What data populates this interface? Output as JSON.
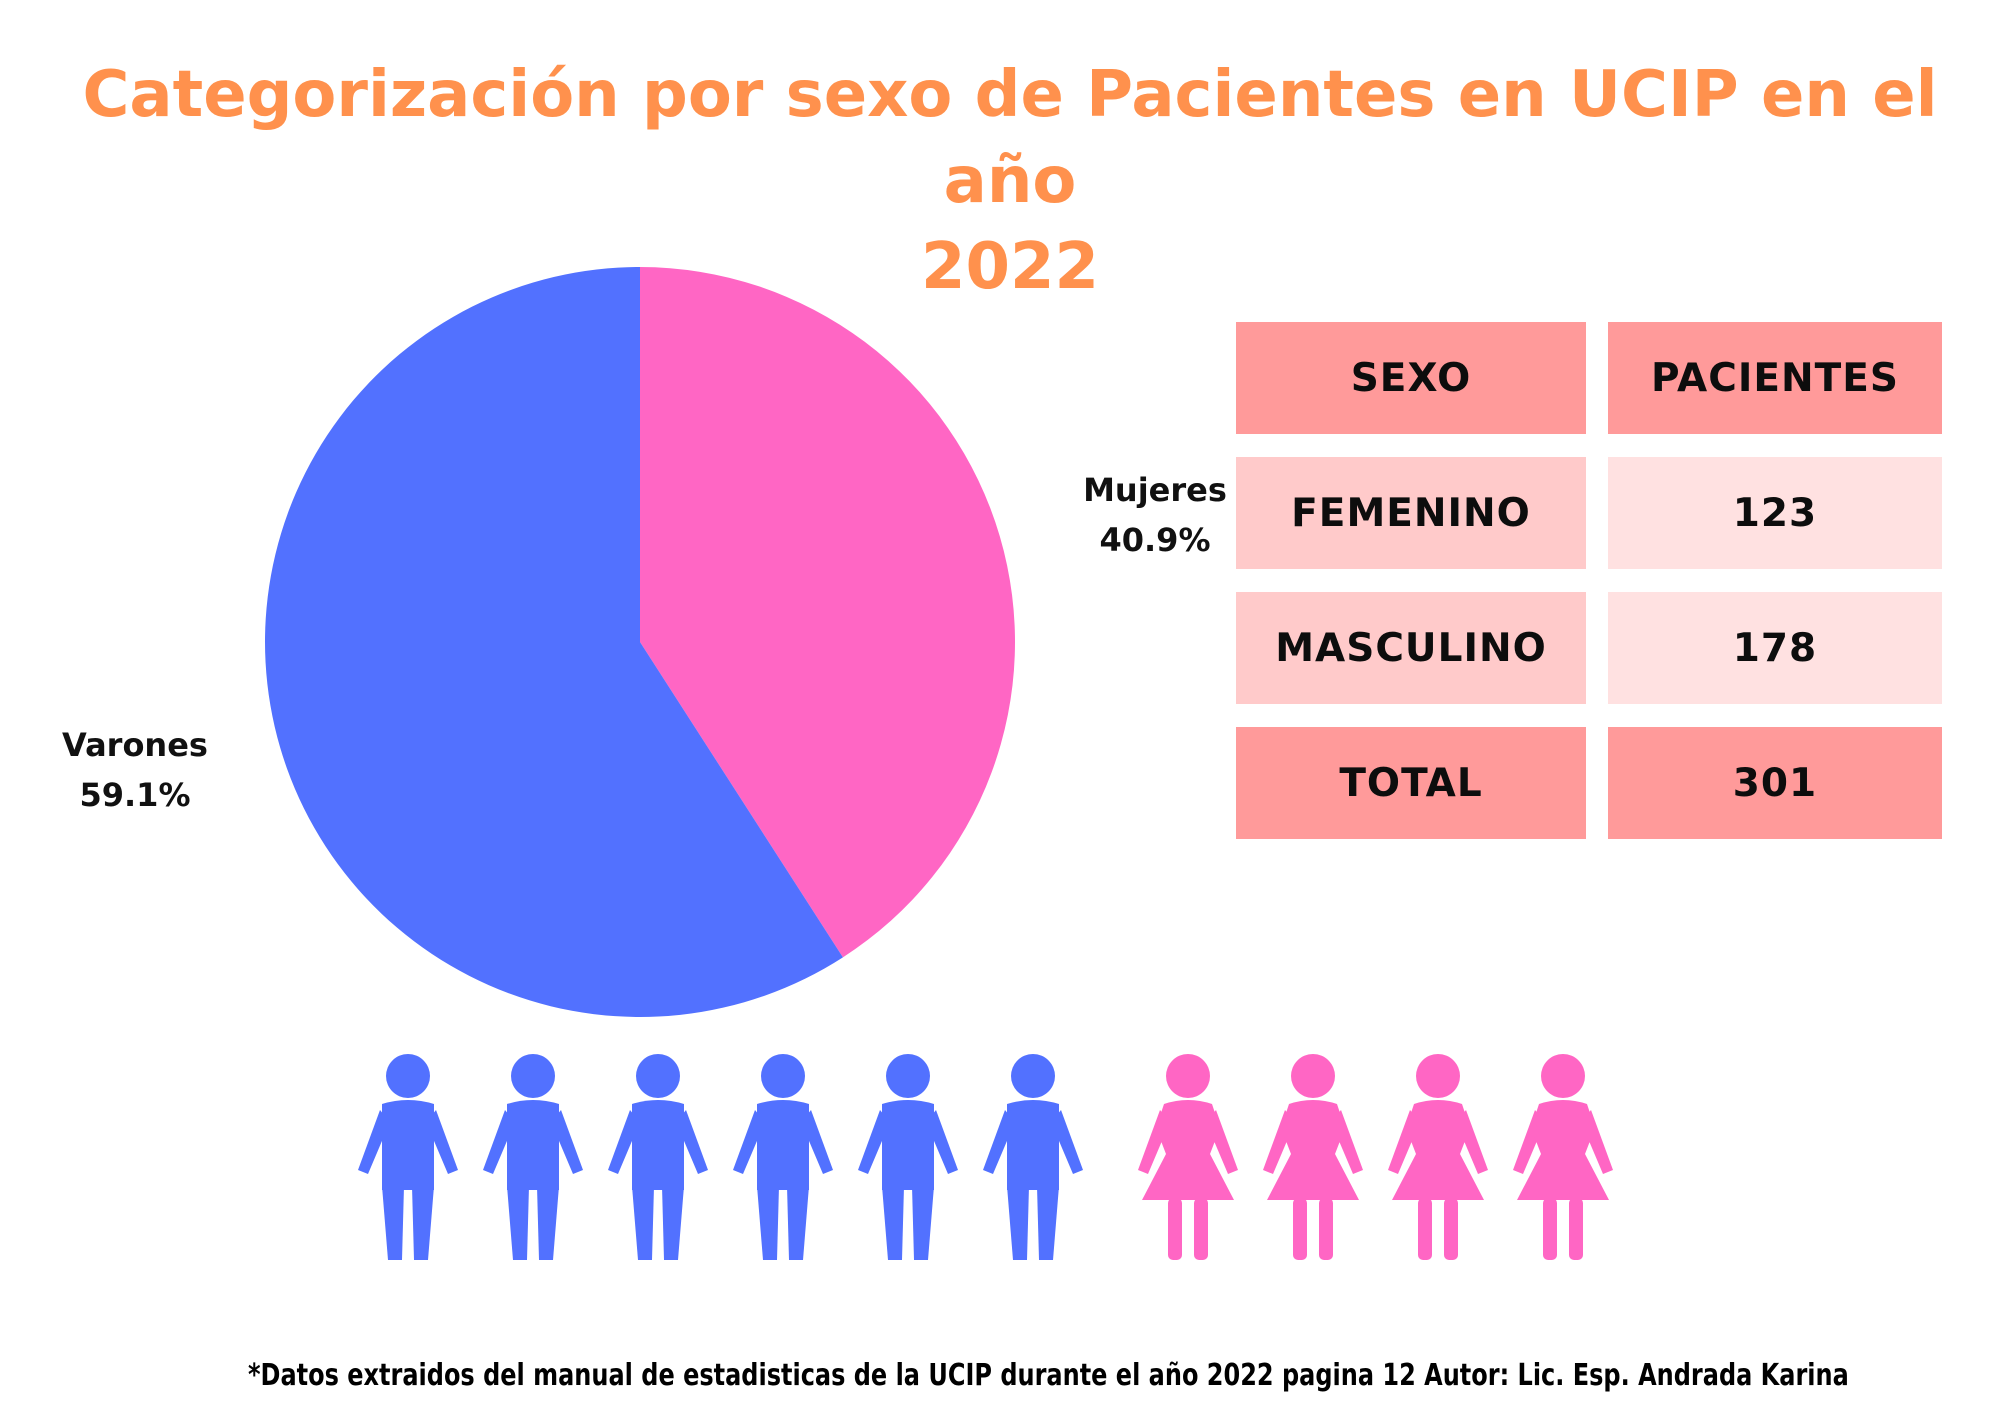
{
  "title": {
    "line1": "Categorización por sexo de Pacientes en UCIP en el año",
    "line2": "2022"
  },
  "chart_data": {
    "type": "pie",
    "title": "Categorización por sexo de Pacientes en UCIP en el año 2022",
    "slices": [
      {
        "name": "Mujeres",
        "percent_label": "40.9%",
        "value": 40.9,
        "color": "#FF66C4"
      },
      {
        "name": "Varones",
        "percent_label": "59.1%",
        "value": 59.1,
        "color": "#5271FF"
      }
    ]
  },
  "table": {
    "headers": [
      "SEXO",
      "PACIENTES"
    ],
    "rows": [
      [
        "FEMENINO",
        "123"
      ],
      [
        "MASCULINO",
        "178"
      ],
      [
        "TOTAL",
        "301"
      ]
    ],
    "colors": {
      "header": "#FF9A9A",
      "body_left": "#FFCACA",
      "body_right": "#FFE1E1"
    }
  },
  "pictogram": {
    "male_count": 6,
    "female_count": 4,
    "male_color": "#5271FF",
    "female_color": "#FF66C4",
    "male_icon": "man-icon",
    "female_icon": "woman-icon"
  },
  "footnote": "*Datos extraidos del manual de estadisticas de la UCIP durante el año 2022 pagina 12 Autor: Lic. Esp. Andrada Karina",
  "colors": {
    "title": "#FF914D",
    "text": "#000000"
  }
}
